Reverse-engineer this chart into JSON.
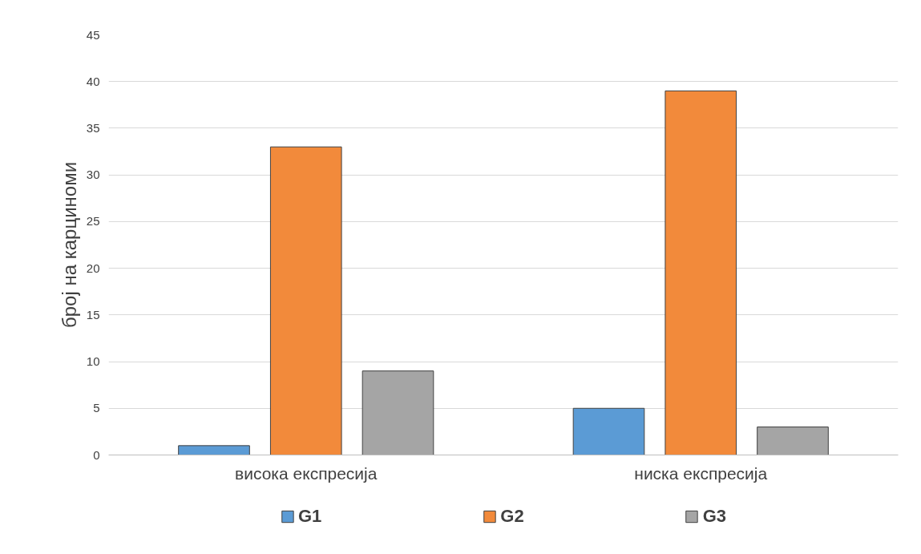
{
  "chart_data": {
    "type": "bar",
    "ylabel": "број на карциноми",
    "categories": [
      "висока експресија",
      "ниска експресија"
    ],
    "series": [
      {
        "name": "G1",
        "color": "#5b9bd5",
        "values": [
          1,
          5
        ]
      },
      {
        "name": "G2",
        "color": "#f28a3b",
        "values": [
          33,
          39
        ]
      },
      {
        "name": "G3",
        "color": "#a5a5a5",
        "values": [
          9,
          3
        ]
      }
    ],
    "ylim": [
      0,
      45
    ],
    "yticks": [
      0,
      5,
      10,
      15,
      20,
      25,
      30,
      35,
      40,
      45
    ],
    "grid": "y",
    "legend": "bottom"
  }
}
